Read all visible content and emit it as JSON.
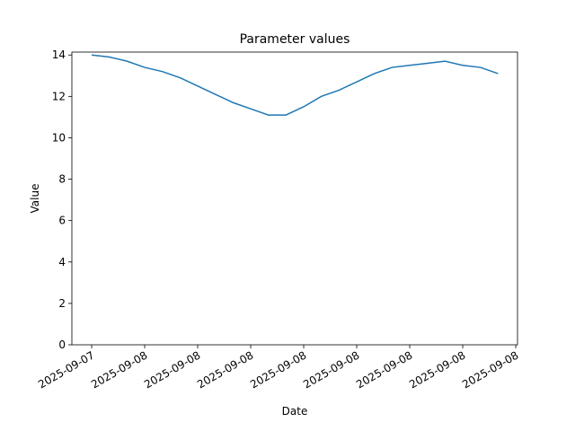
{
  "chart_data": {
    "type": "line",
    "title": "Parameter values",
    "x_label": "Date",
    "y_label": "Value",
    "x": [
      0,
      1,
      2,
      3,
      4,
      5,
      6,
      7,
      8,
      9,
      10,
      11,
      12,
      13,
      14,
      15,
      16,
      17,
      18,
      19,
      20,
      21,
      22,
      23
    ],
    "series": [
      {
        "name": "Value",
        "color": "#1f77b4",
        "values": [
          14.0,
          13.9,
          13.7,
          13.4,
          13.2,
          12.9,
          12.5,
          12.1,
          11.7,
          11.4,
          11.1,
          11.1,
          11.5,
          12.0,
          12.3,
          12.7,
          13.1,
          13.4,
          13.5,
          13.6,
          13.7,
          13.5,
          13.4,
          13.1
        ]
      }
    ],
    "xlim": [
      -1.12,
      24.1
    ],
    "xticks": [
      {
        "value": 0,
        "label": "2025-09-07"
      },
      {
        "value": 3,
        "label": "2025-09-08"
      },
      {
        "value": 6,
        "label": "2025-09-08"
      },
      {
        "value": 9,
        "label": "2025-09-08"
      },
      {
        "value": 12,
        "label": "2025-09-08"
      },
      {
        "value": 15,
        "label": "2025-09-08"
      },
      {
        "value": 18,
        "label": "2025-09-08"
      },
      {
        "value": 21,
        "label": "2025-09-08"
      },
      {
        "value": 24,
        "label": "2025-09-08"
      }
    ],
    "ylim": [
      0,
      14.14
    ],
    "yticks": [
      0,
      2,
      4,
      6,
      8,
      10,
      12,
      14
    ],
    "grid": false
  }
}
